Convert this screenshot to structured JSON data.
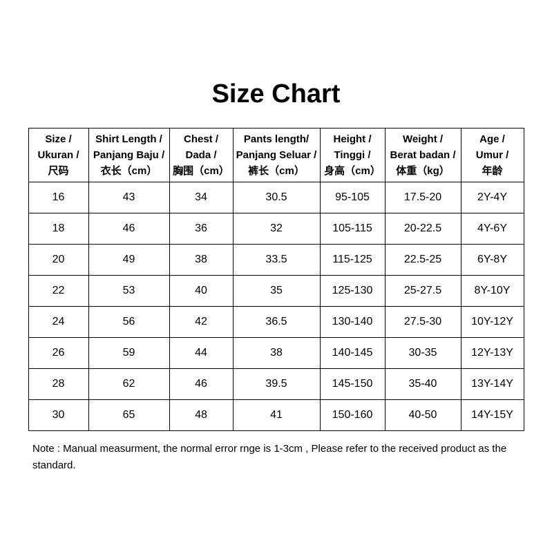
{
  "page": {
    "title": "Size Chart",
    "note": "Note : Manual measurment, the normal error rnge is 1-3cm , Please refer to the received product as the standard."
  },
  "colors": {
    "text": "#000000",
    "border": "#000000",
    "background": "#ffffff"
  },
  "chart_data": {
    "type": "table",
    "title": "Size Chart",
    "columns": [
      {
        "key": "size",
        "header": "Size /\nUkuran /\n尺码"
      },
      {
        "key": "shirt-length",
        "header": "Shirt Length /\nPanjang Baju /\n衣长（cm）"
      },
      {
        "key": "chest",
        "header": "Chest /\nDada /\n胸围（cm）"
      },
      {
        "key": "pants-length",
        "header": "Pants length/\nPanjang Seluar /\n裤长（cm）"
      },
      {
        "key": "height",
        "header": "Height /\nTinggi /\n身高（cm）"
      },
      {
        "key": "weight",
        "header": "Weight /\nBerat badan /\n体重（kg）"
      },
      {
        "key": "age",
        "header": "Age /\nUmur /\n年龄"
      }
    ],
    "rows": [
      [
        "16",
        "43",
        "34",
        "30.5",
        "95-105",
        "17.5-20",
        "2Y-4Y"
      ],
      [
        "18",
        "46",
        "36",
        "32",
        "105-115",
        "20-22.5",
        "4Y-6Y"
      ],
      [
        "20",
        "49",
        "38",
        "33.5",
        "115-125",
        "22.5-25",
        "6Y-8Y"
      ],
      [
        "22",
        "53",
        "40",
        "35",
        "125-130",
        "25-27.5",
        "8Y-10Y"
      ],
      [
        "24",
        "56",
        "42",
        "36.5",
        "130-140",
        "27.5-30",
        "10Y-12Y"
      ],
      [
        "26",
        "59",
        "44",
        "38",
        "140-145",
        "30-35",
        "12Y-13Y"
      ],
      [
        "28",
        "62",
        "46",
        "39.5",
        "145-150",
        "35-40",
        "13Y-14Y"
      ],
      [
        "30",
        "65",
        "48",
        "41",
        "150-160",
        "40-50",
        "14Y-15Y"
      ]
    ]
  }
}
